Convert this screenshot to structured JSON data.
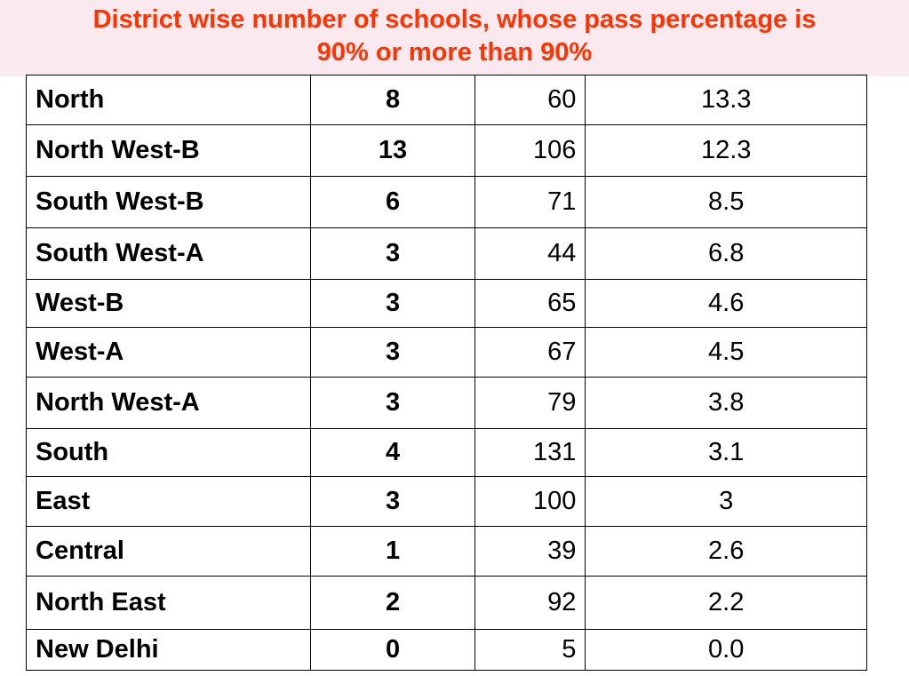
{
  "header": {
    "title_line1": "District wise number of schools, whose pass percentage is",
    "title_line2": "90% or more than 90%"
  },
  "colors": {
    "title": "#ff3300",
    "title_band": "#fbe9f0"
  },
  "table": {
    "rows": [
      {
        "district": "North",
        "count": "8",
        "total": "60",
        "percent": "13.3"
      },
      {
        "district": "North West-B",
        "count": "13",
        "total": "106",
        "percent": "12.3"
      },
      {
        "district": "South West-B",
        "count": "6",
        "total": "71",
        "percent": "8.5"
      },
      {
        "district": "South West-A",
        "count": "3",
        "total": "44",
        "percent": "6.8"
      },
      {
        "district": "West-B",
        "count": "3",
        "total": "65",
        "percent": "4.6"
      },
      {
        "district": "West-A",
        "count": "3",
        "total": "67",
        "percent": "4.5"
      },
      {
        "district": "North West-A",
        "count": "3",
        "total": "79",
        "percent": "3.8"
      },
      {
        "district": "South",
        "count": "4",
        "total": "131",
        "percent": "3.1"
      },
      {
        "district": "East",
        "count": "3",
        "total": "100",
        "percent": "3"
      },
      {
        "district": "Central",
        "count": "1",
        "total": "39",
        "percent": "2.6"
      },
      {
        "district": "North East",
        "count": "2",
        "total": "92",
        "percent": "2.2"
      },
      {
        "district": "New Delhi",
        "count": "0",
        "total": "5",
        "percent": "0.0"
      }
    ]
  }
}
